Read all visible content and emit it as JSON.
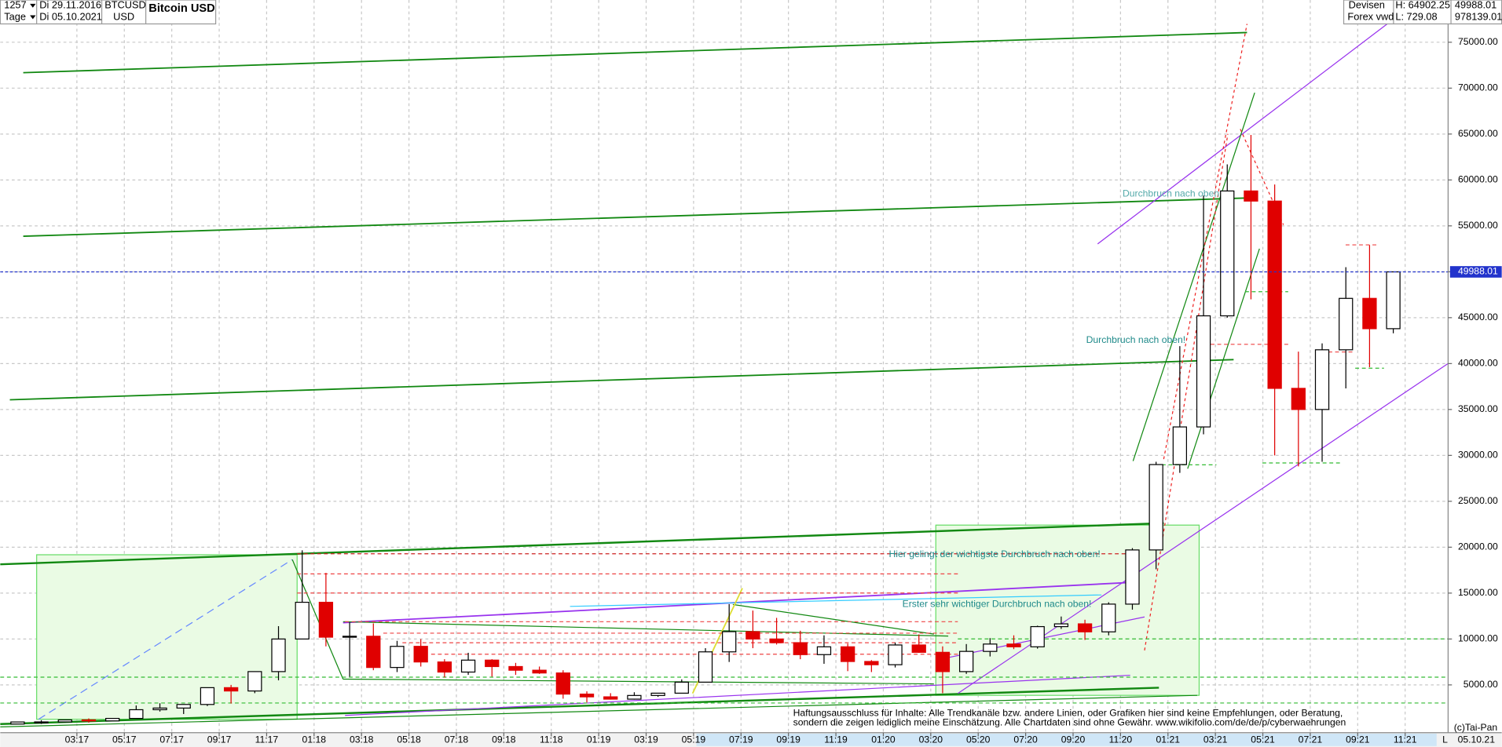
{
  "chart_data": {
    "type": "candlestick",
    "title": "Bitcoin USD",
    "period_count": "1257",
    "period_unit": "Tage",
    "start_date": "Di 29.11.2016",
    "end_date": "Di 05.10.2021",
    "symbol": "BTCUSD",
    "currency": "USD",
    "market": "Devisen",
    "source": "Forex vwd",
    "high_label": "H: 64902.25",
    "low_label": "L: 729.08",
    "last_label": "49988.01",
    "volume_label": "978139.01",
    "last_value": 49988.01,
    "categories": [
      null,
      null,
      null,
      "03:17",
      null,
      "05:17",
      null,
      "07:17",
      null,
      "09:17",
      null,
      "11:17",
      null,
      "01:18",
      null,
      "03:18",
      null,
      "05:18",
      null,
      "07:18",
      null,
      "09:18",
      null,
      "11:18",
      null,
      "01:19",
      null,
      "03:19",
      null,
      "05:19",
      null,
      "07:19",
      null,
      "09:19",
      null,
      "11:19",
      null,
      "01:20",
      null,
      "03:20",
      null,
      "05:20",
      null,
      "07:20",
      null,
      "09:20",
      null,
      "11:20",
      null,
      "01:21",
      null,
      "03:21",
      null,
      "05:21",
      null,
      "07:21",
      null,
      "09:21",
      null,
      "11:21"
    ],
    "open": [
      740,
      963,
      970,
      1190,
      1080,
      1350,
      2300,
      2480,
      2870,
      4700,
      4340,
      6450,
      10000,
      14000,
      10200,
      10300,
      6900,
      9200,
      7500,
      6400,
      7700,
      7000,
      6600,
      6300,
      4000,
      3700,
      3450,
      3850,
      4100,
      5300,
      8600,
      10800,
      10000,
      9600,
      8300,
      9150,
      7550,
      7200,
      9350,
      8550,
      6450,
      8650,
      9450,
      9150,
      11350,
      11650,
      10780,
      13800,
      19700,
      29000,
      33100,
      45200,
      58800,
      57700,
      37300,
      35000,
      41500,
      47100,
      43800,
      null
    ],
    "high": [
      980,
      1150,
      1200,
      1350,
      1350,
      2760,
      3000,
      2900,
      4700,
      5000,
      6470,
      11400,
      19660,
      17200,
      11800,
      11700,
      9800,
      9990,
      7800,
      8500,
      7800,
      7400,
      7000,
      6600,
      4300,
      4100,
      4200,
      4100,
      5600,
      9000,
      13800,
      13100,
      12300,
      10900,
      10400,
      9500,
      7700,
      9600,
      10500,
      9200,
      9450,
      10100,
      10400,
      11450,
      12450,
      12100,
      14000,
      19900,
      29300,
      41900,
      58300,
      61700,
      64900,
      59500,
      41300,
      42200,
      50500,
      52900,
      50000,
      null
    ],
    "low": [
      740,
      750,
      920,
      890,
      1060,
      1350,
      2100,
      1830,
      2700,
      2970,
      4100,
      5500,
      10000,
      9200,
      5900,
      6600,
      6400,
      7000,
      5800,
      6100,
      5900,
      6100,
      6200,
      3500,
      3100,
      3400,
      3400,
      3700,
      4100,
      5300,
      7500,
      9000,
      9400,
      7800,
      7300,
      6500,
      6400,
      6900,
      8500,
      4100,
      6200,
      8100,
      8900,
      8950,
      11100,
      9900,
      10400,
      13200,
      17600,
      28100,
      32300,
      45000,
      47000,
      30000,
      28800,
      29300,
      37300,
      39600,
      43300,
      null
    ],
    "close": [
      963,
      970,
      1190,
      1080,
      1350,
      2300,
      2480,
      2870,
      4700,
      4340,
      6450,
      10000,
      14000,
      10200,
      10300,
      6900,
      9200,
      7500,
      6400,
      7700,
      7000,
      6600,
      6300,
      4000,
      3700,
      3450,
      3850,
      4100,
      5300,
      8600,
      10800,
      10000,
      9600,
      8300,
      9150,
      7550,
      7200,
      9350,
      8550,
      6450,
      8650,
      9450,
      9150,
      11350,
      11650,
      10780,
      13800,
      19700,
      29000,
      33100,
      45200,
      58800,
      57700,
      37300,
      35000,
      41500,
      47100,
      43800,
      49988.01,
      null
    ],
    "up_color": "#000000",
    "down_color": "#e00000",
    "ylim": [
      -200,
      79600
    ],
    "yticks": [
      {
        "value": 5000,
        "label": "5000.00"
      },
      {
        "value": 10000,
        "label": "10000.00"
      },
      {
        "value": 15000,
        "label": "15000.00"
      },
      {
        "value": 20000,
        "label": "20000.00"
      },
      {
        "value": 25000,
        "label": "25000.00"
      },
      {
        "value": 30000,
        "label": "30000.00"
      },
      {
        "value": 35000,
        "label": "35000.00"
      },
      {
        "value": 40000,
        "label": "40000.00"
      },
      {
        "value": 45000,
        "label": "45000.00"
      },
      {
        "value": 50000,
        "label": "50000.00"
      },
      {
        "value": 55000,
        "label": "55000.00"
      },
      {
        "value": 60000,
        "label": "60000.00"
      },
      {
        "value": 65000,
        "label": "65000.00"
      },
      {
        "value": 70000,
        "label": "70000.00"
      },
      {
        "value": 75000,
        "label": "75000.00"
      }
    ],
    "grid": true,
    "annotations": [
      "Durchbruch nach oben",
      "Durchbruch nach oben!",
      "Hier gelingt der wichtigste Durchbruch nach oben!",
      "Erster sehr wichtiger Durchbruch nach oben!"
    ],
    "disclaimer": [
      "Haftungsausschluss für Inhalte: Alle Trendkanäle bzw. andere Linien, oder Grafiken hier sind keine Empfehlungen, oder Beratung,",
      "sondern die zeigen lediglich meine  Einschätzung. Alle Chartdaten sind ohne Gewähr.  www.wikifolio.com/de/de/p/cyberwaehrungen"
    ],
    "copyright": "(c)Tai-Pan",
    "axis_end_date": "05.10.21",
    "axis_mode": "L"
  }
}
